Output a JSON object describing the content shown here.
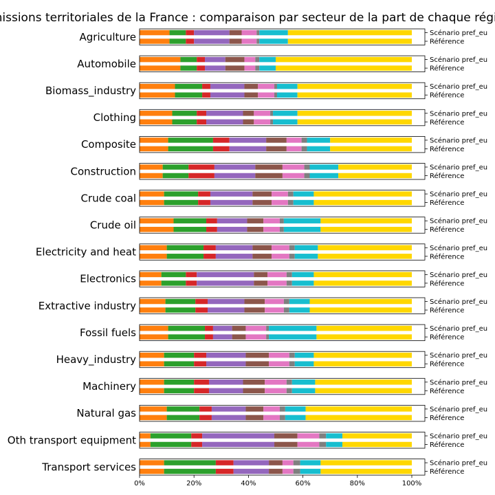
{
  "chart_data": {
    "type": "bar",
    "orientation": "horizontal",
    "stacked": true,
    "title": "Émissions territoriales de la France : comparaison par secteur de la part de chaque région",
    "xlim": [
      0,
      100
    ],
    "x_ticks": [
      "0%",
      "20%",
      "40%",
      "60%",
      "80%",
      "100%"
    ],
    "row_labels": [
      "Scénario pref_eu",
      "Référence"
    ],
    "segment_colors": [
      "#ff7f0e",
      "#2ca02c",
      "#d62728",
      "#9467bd",
      "#8c564b",
      "#e377c2",
      "#7f7f7f",
      "#17becf",
      "#ffd700"
    ],
    "sectors": [
      {
        "name": "Agriculture",
        "shares": [
          11,
          6,
          3,
          13,
          4.5,
          5.5,
          1,
          10.5,
          45.5
        ]
      },
      {
        "name": "Automobile",
        "shares": [
          15,
          6,
          3,
          7.5,
          7,
          4,
          1.5,
          6,
          50
        ]
      },
      {
        "name": "Biomass_industry",
        "shares": [
          13,
          10,
          3,
          12.5,
          5,
          6,
          1,
          7.5,
          42
        ]
      },
      {
        "name": "Clothing",
        "shares": [
          12,
          9,
          3.5,
          13.5,
          4,
          6,
          1,
          9,
          42
        ]
      },
      {
        "name": "Composite",
        "shares": [
          10.5,
          16.5,
          6,
          13.5,
          7.5,
          5.5,
          2,
          8.5,
          30
        ]
      },
      {
        "name": "Construction",
        "shares": [
          8.5,
          9.5,
          9.5,
          15,
          10,
          8,
          2,
          10.5,
          27
        ]
      },
      {
        "name": "Crude coal",
        "shares": [
          9,
          12.5,
          4.5,
          15.5,
          7,
          6,
          2,
          7.5,
          36
        ]
      },
      {
        "name": "Crude oil",
        "shares": [
          12.5,
          12,
          4,
          11,
          6,
          6,
          1.5,
          13.5,
          33.5
        ]
      },
      {
        "name": "Electricity and heat",
        "shares": [
          10,
          13.5,
          4.5,
          13.5,
          7,
          6.5,
          2,
          8.5,
          34.5
        ]
      },
      {
        "name": "Electronics",
        "shares": [
          8,
          9,
          4,
          21,
          5,
          7,
          2,
          8,
          36
        ]
      },
      {
        "name": "Extractive industry",
        "shares": [
          9.5,
          11,
          4.5,
          13.5,
          7.5,
          7,
          2,
          7.5,
          37.5
        ]
      },
      {
        "name": "Fossil fuels",
        "shares": [
          10.5,
          13.5,
          3,
          7,
          5,
          7.5,
          1,
          17.5,
          35
        ]
      },
      {
        "name": "Heavy_industry",
        "shares": [
          9,
          11,
          4.5,
          14.5,
          8.5,
          7.5,
          2,
          7,
          36
        ]
      },
      {
        "name": "Machinery",
        "shares": [
          9,
          11,
          5.5,
          12.5,
          8,
          8,
          2,
          8.5,
          35.5
        ]
      },
      {
        "name": "Natural gas",
        "shares": [
          10,
          12,
          4.5,
          12.5,
          6.5,
          6,
          2,
          7.5,
          39
        ]
      },
      {
        "name": "Oth transport equipment",
        "shares": [
          4,
          15,
          4,
          26.5,
          8.5,
          8,
          2.5,
          6,
          25.5
        ]
      },
      {
        "name": "Transport services",
        "shares": [
          9,
          19,
          6.5,
          13,
          5,
          4,
          2.5,
          7.5,
          33.5
        ]
      }
    ]
  }
}
